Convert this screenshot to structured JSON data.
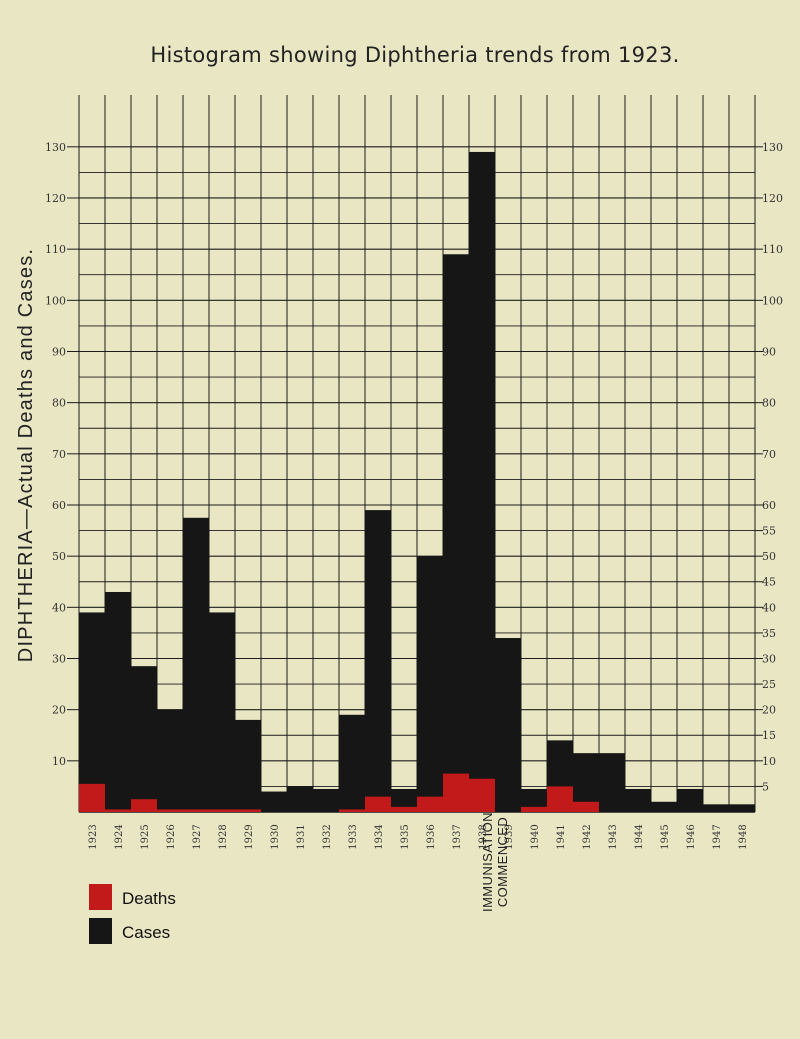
{
  "chart_data": {
    "type": "bar",
    "title": "Histogram showing Diphtheria trends from 1923.",
    "side_label": "DIPHTHERIA—Actual Deaths and Cases.",
    "categories": [
      "1923",
      "1924",
      "1925",
      "1926",
      "1927",
      "1928",
      "1929",
      "1930",
      "1931",
      "1932",
      "1933",
      "1934",
      "1935",
      "1936",
      "1937",
      "1938",
      "1939",
      "1940",
      "1941",
      "1942",
      "1943",
      "1944",
      "1945",
      "1946",
      "1947",
      "1948"
    ],
    "series": [
      {
        "name": "Cases",
        "color": "#161616",
        "values": [
          39,
          43,
          28.5,
          20,
          57.5,
          39,
          18,
          4,
          5,
          4.5,
          19,
          59,
          4.5,
          50,
          109,
          129,
          34,
          4.5,
          14,
          11.5,
          11.5,
          4.5,
          2,
          4.5,
          1.5,
          1.5
        ]
      },
      {
        "name": "Deaths",
        "color": "#c21a1a",
        "values": [
          5.5,
          0.5,
          2.5,
          0.5,
          0.5,
          0.5,
          0.5,
          0,
          0,
          0,
          0.5,
          3,
          1,
          3,
          7.5,
          6.5,
          0,
          1,
          5,
          2,
          0,
          0,
          0,
          0,
          0,
          0
        ]
      }
    ],
    "left_axis_ticks": [
      10,
      20,
      30,
      40,
      50,
      60,
      70,
      80,
      90,
      100,
      110,
      120,
      130
    ],
    "right_axis_ticks": [
      5,
      10,
      15,
      20,
      25,
      30,
      35,
      40,
      45,
      50,
      55,
      60,
      70,
      80,
      90,
      100,
      110,
      120,
      130
    ],
    "ylim": [
      0,
      130
    ],
    "grid": true,
    "annotation": "IMMUNISATION COMMENCED",
    "annotation_lines": [
      "IMMUNISATION",
      "COMMENCED"
    ],
    "annotation_year": "1938",
    "legend_placement": "bottom-left"
  },
  "colors": {
    "background": "#e9e6c4",
    "grid": "#1c1c1c",
    "cases": "#161616",
    "deaths": "#c21a1a"
  }
}
